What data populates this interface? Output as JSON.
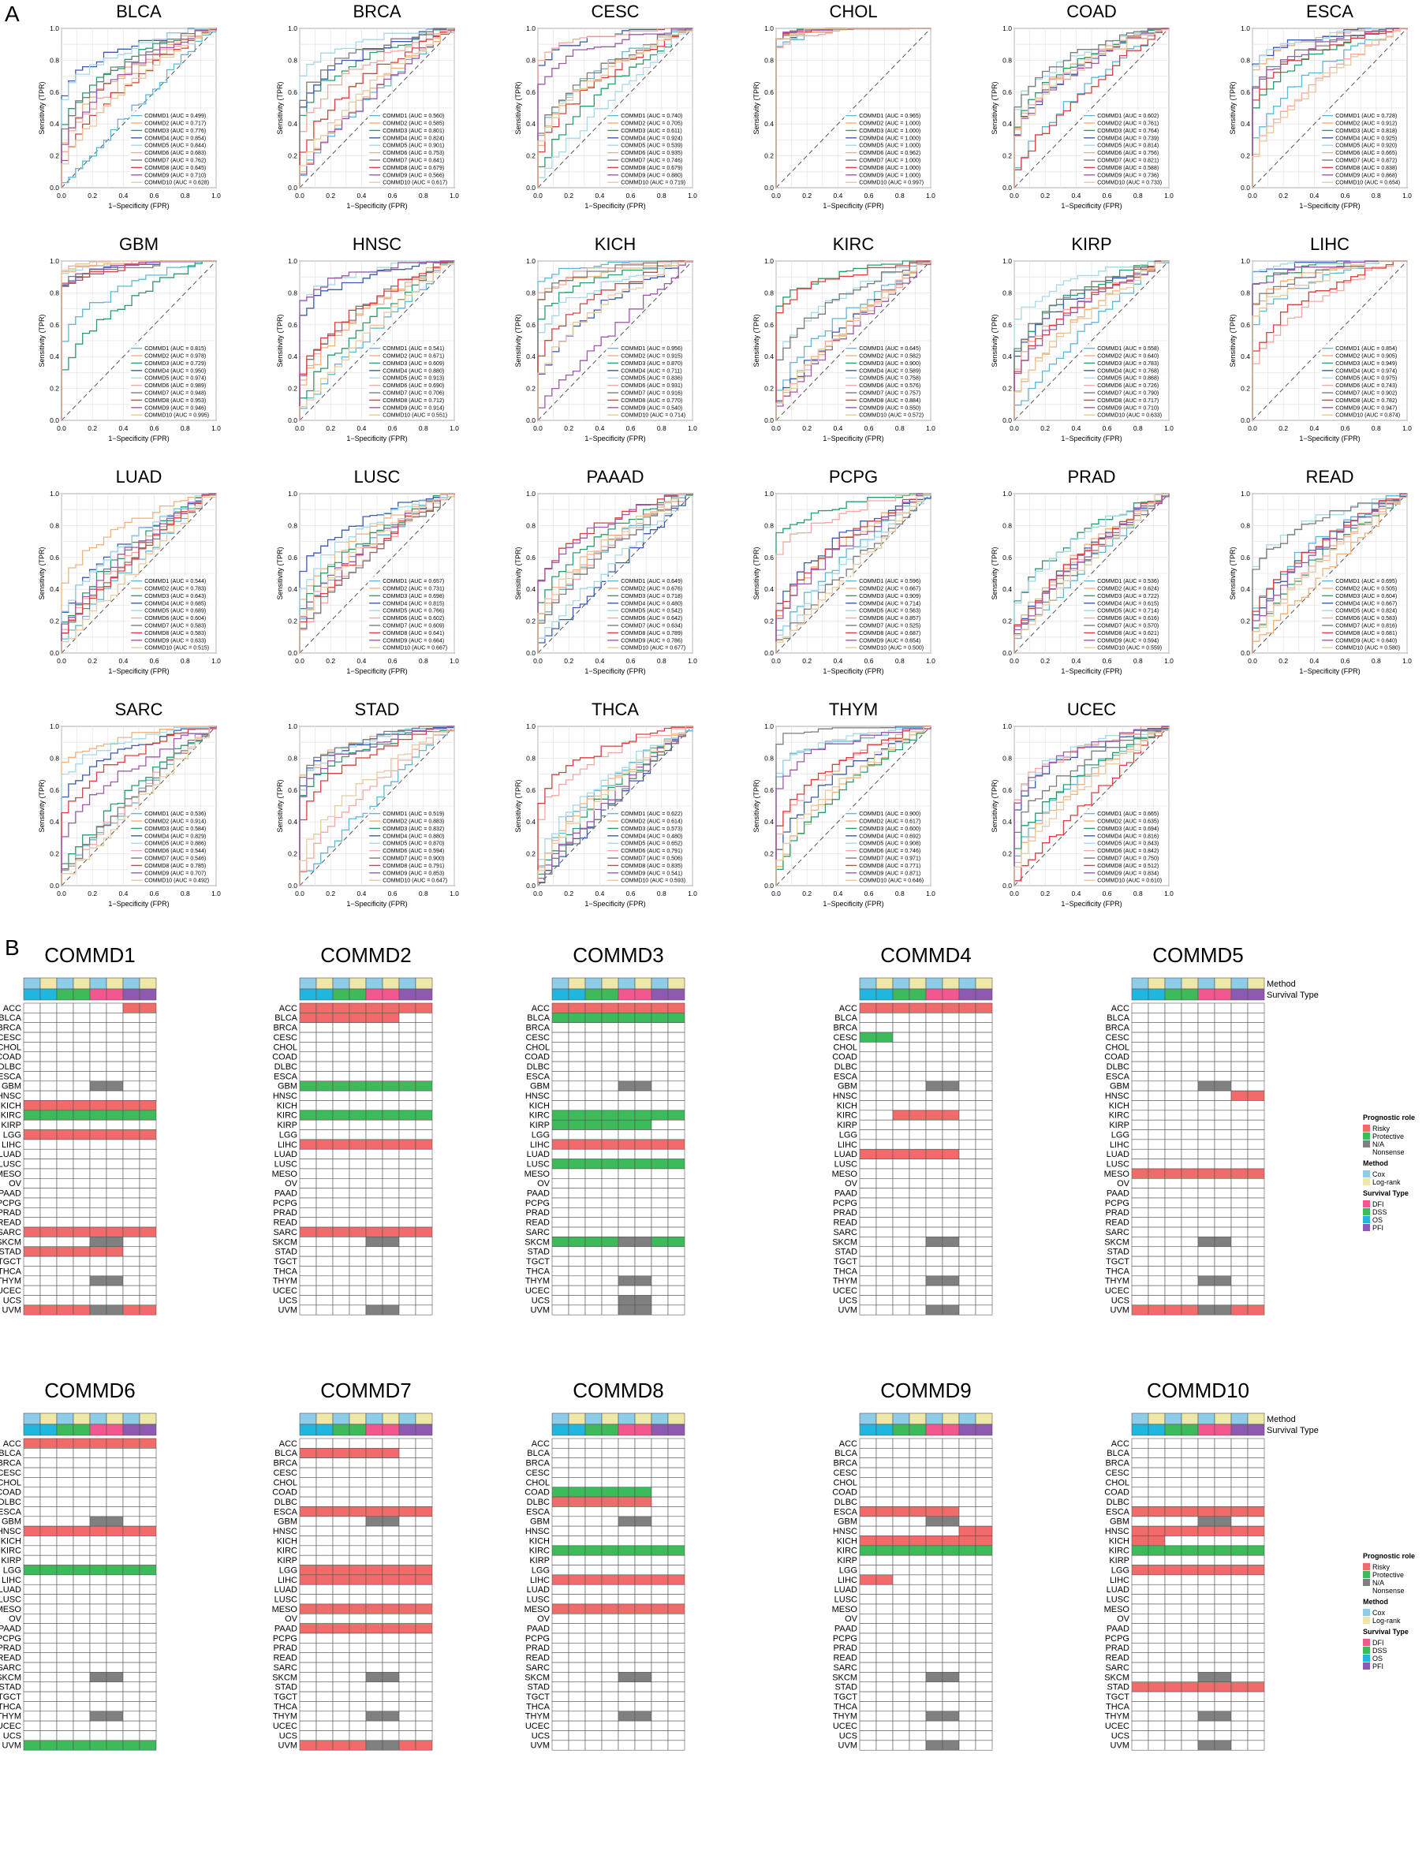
{
  "panel_a_label": "A",
  "panel_b_label": "B",
  "roc": {
    "xlabel": "1−Specificity (FPR)",
    "ylabel": "Sensitivity (TPR)",
    "ticks": [
      "0.0",
      "0.2",
      "0.4",
      "0.6",
      "0.8",
      "1.0"
    ],
    "series_prefix": [
      "COMMD1",
      "COMMD2",
      "COMMD3",
      "COMMD4",
      "COMMD5",
      "COMMD6",
      "COMMD7",
      "COMMD8",
      "COMMD9",
      "COMMD10"
    ],
    "colors": {
      "COMMD1": "#5fb8d6",
      "COMMD2": "#f0b27a",
      "COMMD3": "#2a9d6e",
      "COMMD4": "#3b5bab",
      "COMMD5": "#a7d8e8",
      "COMMD6": "#f2a9a0",
      "COMMD7": "#7c7c7c",
      "COMMD8": "#d94040",
      "COMMD9": "#9e5aa8",
      "COMMD10": "#e8c9a0"
    }
  },
  "chart_data": {
    "type": "line",
    "xlabel": "1−Specificity (FPR)",
    "ylabel": "Sensitivity (TPR)",
    "xlim": [
      0,
      1
    ],
    "ylim": [
      0,
      1
    ],
    "panels": [
      {
        "cancer": "BLCA",
        "auc": [
          0.499,
          0.717,
          0.776,
          0.854,
          0.844,
          0.683,
          0.762,
          0.645,
          0.71,
          0.628
        ]
      },
      {
        "cancer": "BRCA",
        "auc": [
          0.56,
          0.585,
          0.801,
          0.824,
          0.901,
          0.753,
          0.841,
          0.679,
          0.566,
          0.617
        ]
      },
      {
        "cancer": "CESC",
        "auc": [
          0.74,
          0.705,
          0.611,
          0.924,
          0.539,
          0.935,
          0.746,
          0.679,
          0.88,
          0.719
        ]
      },
      {
        "cancer": "CHOL",
        "auc": [
          0.965,
          1.0,
          1.0,
          1.0,
          1.0,
          0.962,
          1.0,
          1.0,
          1.0,
          0.997
        ]
      },
      {
        "cancer": "COAD",
        "auc": [
          0.602,
          0.761,
          0.764,
          0.739,
          0.814,
          0.756,
          0.821,
          0.588,
          0.736,
          0.733
        ]
      },
      {
        "cancer": "ESCA",
        "auc": [
          0.728,
          0.912,
          0.818,
          0.925,
          0.92,
          0.665,
          0.872,
          0.838,
          0.868,
          0.654
        ]
      },
      {
        "cancer": "GBM",
        "auc": [
          0.815,
          0.978,
          0.729,
          0.95,
          0.974,
          0.989,
          0.948,
          0.953,
          0.946,
          0.995
        ]
      },
      {
        "cancer": "HNSC",
        "auc": [
          0.541,
          0.671,
          0.609,
          0.88,
          0.913,
          0.69,
          0.706,
          0.712,
          0.914,
          0.551
        ]
      },
      {
        "cancer": "KICH",
        "auc": [
          0.956,
          0.915,
          0.87,
          0.711,
          0.836,
          0.931,
          0.916,
          0.77,
          0.54,
          0.714
        ]
      },
      {
        "cancer": "KIRC",
        "auc": [
          0.645,
          0.582,
          0.9,
          0.589,
          0.758,
          0.576,
          0.757,
          0.884,
          0.55,
          0.572
        ]
      },
      {
        "cancer": "KIRP",
        "auc": [
          0.558,
          0.64,
          0.783,
          0.768,
          0.868,
          0.726,
          0.79,
          0.717,
          0.71,
          0.633
        ]
      },
      {
        "cancer": "LIHC",
        "auc": [
          0.854,
          0.905,
          0.949,
          0.974,
          0.975,
          0.743,
          0.902,
          0.782,
          0.947,
          0.874
        ]
      },
      {
        "cancer": "LUAD",
        "auc": [
          0.544,
          0.783,
          0.643,
          0.685,
          0.689,
          0.604,
          0.583,
          0.583,
          0.633,
          0.515
        ]
      },
      {
        "cancer": "LUSC",
        "auc": [
          0.657,
          0.731,
          0.698,
          0.815,
          0.766,
          0.602,
          0.609,
          0.641,
          0.664,
          0.667
        ]
      },
      {
        "cancer": "PAAAD",
        "auc": [
          0.649,
          0.676,
          0.718,
          0.48,
          0.542,
          0.642,
          0.634,
          0.789,
          0.786,
          0.677
        ]
      },
      {
        "cancer": "PCPG",
        "auc": [
          0.596,
          0.667,
          0.909,
          0.714,
          0.563,
          0.857,
          0.525,
          0.687,
          0.654,
          0.5
        ]
      },
      {
        "cancer": "PRAD",
        "auc": [
          0.536,
          0.624,
          0.722,
          0.615,
          0.714,
          0.616,
          0.57,
          0.621,
          0.594,
          0.559
        ]
      },
      {
        "cancer": "READ",
        "auc": [
          0.695,
          0.505,
          0.604,
          0.667,
          0.824,
          0.583,
          0.816,
          0.681,
          0.64,
          0.58
        ]
      },
      {
        "cancer": "SARC",
        "auc": [
          0.536,
          0.914,
          0.584,
          0.829,
          0.886,
          0.544,
          0.546,
          0.785,
          0.707,
          0.492
        ]
      },
      {
        "cancer": "STAD",
        "auc": [
          0.519,
          0.883,
          0.832,
          0.88,
          0.87,
          0.594,
          0.9,
          0.791,
          0.853,
          0.647
        ]
      },
      {
        "cancer": "THCA",
        "auc": [
          0.622,
          0.614,
          0.573,
          0.48,
          0.652,
          0.791,
          0.506,
          0.835,
          0.541,
          0.593
        ]
      },
      {
        "cancer": "THYM",
        "auc": [
          0.9,
          0.617,
          0.6,
          0.692,
          0.908,
          0.746,
          0.971,
          0.771,
          0.871,
          0.646
        ]
      },
      {
        "cancer": "UCEC",
        "auc": [
          0.665,
          0.635,
          0.694,
          0.816,
          0.843,
          0.842,
          0.75,
          0.512,
          0.834,
          0.61
        ]
      }
    ]
  },
  "heatmap": {
    "top_labels": [
      "Method",
      "Survival Type"
    ],
    "cancers": [
      "ACC",
      "BLCA",
      "BRCA",
      "CESC",
      "CHOL",
      "COAD",
      "DLBC",
      "ESCA",
      "GBM",
      "HNSC",
      "KICH",
      "KIRC",
      "KIRP",
      "LGG",
      "LIHC",
      "LUAD",
      "LUSC",
      "MESO",
      "OV",
      "PAAD",
      "PCPG",
      "PRAD",
      "READ",
      "SARC",
      "SKCM",
      "STAD",
      "TGCT",
      "THCA",
      "THYM",
      "UCEC",
      "UCS",
      "UVM"
    ],
    "method_row": [
      "Cox",
      "Log-rank",
      "Cox",
      "Log-rank",
      "Cox",
      "Log-rank",
      "Cox",
      "Log-rank"
    ],
    "survival_row": [
      "OS",
      "OS",
      "DSS",
      "DSS",
      "DFI",
      "DFI",
      "PFI",
      "PFI"
    ],
    "state_colors": {
      "R": "#f26b6b",
      "P": "#3dbb5a",
      "N": "#808080",
      "W": "#ffffff"
    },
    "method_colors": {
      "Cox": "#8fcce8",
      "Log-rank": "#ede8a8"
    },
    "survival_colors": {
      "DFI": "#f2588f",
      "DSS": "#3dbb5a",
      "OS": "#21b6df",
      "PFI": "#8e59b0"
    },
    "legend_b": {
      "prognostic_title": "Prognostic role",
      "prognostic_items": [
        [
          "Risky",
          "R"
        ],
        [
          "Protective",
          "P"
        ],
        [
          "N/A",
          "N"
        ],
        [
          "Nonsense",
          "W"
        ]
      ],
      "method_title": "Method",
      "method_items": [
        "Cox",
        "Log-rank"
      ],
      "survival_title": "Survival Type",
      "survival_items": [
        "DFI",
        "DSS",
        "OS",
        "PFI"
      ]
    },
    "genes": [
      {
        "name": "COMMD1",
        "rows": {
          "ACC": "WWWWWWRR",
          "BLCA": "WWWWWWWW",
          "GBM": "WWWWNNWW",
          "KICH": "RRRRRRRR",
          "KIRC": "PPPPPPPP",
          "LGG": "RRRRRRRR",
          "SARC": "RRRRRRRR",
          "SKCM": "WWWWNNWW",
          "STAD": "RRRRRRWW",
          "THYM": "WWWWNNWW",
          "UVM": "RRRRNNRR"
        }
      },
      {
        "name": "COMMD2",
        "rows": {
          "ACC": "RRRRRRRR",
          "BLCA": "RRRRRRWW",
          "GBM": "PPPPPPPP",
          "KIRC": "PPPPPPPP",
          "LIHC": "RRRRRRRR",
          "SARC": "RRRRRRRR",
          "SKCM": "WWWWNNWW",
          "UVM": "WWWWNNWW"
        }
      },
      {
        "name": "COMMD3",
        "rows": {
          "ACC": "RRRRRRRR",
          "BLCA": "PPPPPPPP",
          "GBM": "WWWWNNWW",
          "KIRC": "PPPPPPPP",
          "KIRP": "PPPPPPWW",
          "LIHC": "RRRRRRRR",
          "LUSC": "PPPPPPPP",
          "SKCM": "PPPPNNPP",
          "THYM": "WWWWNNWW",
          "UCS": "WWWWNNWW",
          "UVM": "WWWWNNWW"
        }
      },
      {
        "name": "COMMD4",
        "rows": {
          "ACC": "RRRRRRRR",
          "CESC": "PPWWWWWW",
          "GBM": "WWWWNNWW",
          "KIRC": "WWRRRRWW",
          "LUAD": "RRRRRRWW",
          "SKCM": "WWWWNNWW",
          "THYM": "WWWWNNWW",
          "UVM": "WWWWNNWW"
        }
      },
      {
        "name": "COMMD5",
        "rows": {
          "GBM": "WWWWNNWW",
          "HNSC": "WWWWWWRR",
          "MESO": "RRRRRRRR",
          "SKCM": "WWWWNNWW",
          "THYM": "WWWWNNWW",
          "UVM": "RRRRNNRR"
        }
      },
      {
        "name": "COMMD6",
        "rows": {
          "ACC": "RRRRRRRR",
          "GBM": "WWWWNNWW",
          "HNSC": "RRRRRRRR",
          "LGG": "PPPPPPPP",
          "SKCM": "WWWWNNWW",
          "THYM": "WWWWNNWW",
          "UVM": "PPPPPPPP"
        }
      },
      {
        "name": "COMMD7",
        "rows": {
          "BLCA": "RRRRRRWW",
          "ESCA": "RRRRRRRR",
          "GBM": "WWWWNNWW",
          "LGG": "RRRRRRRR",
          "LIHC": "RRRRRRRR",
          "MESO": "RRRRRRRR",
          "PAAD": "RRRRRRRR",
          "SKCM": "WWWWNNWW",
          "THYM": "WWWWNNWW",
          "UVM": "RRRRNNRR"
        }
      },
      {
        "name": "COMMD8",
        "rows": {
          "COAD": "PPPPPPWW",
          "DLBC": "RRRRRRWW",
          "GBM": "WWWWNNWW",
          "KIRC": "PPPPPPPP",
          "LIHC": "RRRRRRRR",
          "MESO": "RRRRRRRR",
          "SKCM": "WWWWNNWW",
          "THYM": "WWWWNNWW"
        }
      },
      {
        "name": "COMMD9",
        "rows": {
          "ESCA": "RRRRRRWW",
          "GBM": "WWWWNNWW",
          "HNSC": "WWWWWWRR",
          "KICH": "RRRRRRRR",
          "KIRC": "PPPPPPPP",
          "LIHC": "RRWWWWWW",
          "SKCM": "WWWWNNWW",
          "THYM": "WWWWNNWW",
          "UVM": "WWWWNNWW"
        }
      },
      {
        "name": "COMMD10",
        "rows": {
          "ESCA": "RRRRRRRR",
          "GBM": "WWWWNNWW",
          "HNSC": "RRRRRRRR",
          "KICH": "RRWWWWWW",
          "KIRC": "PPPPPPPP",
          "LGG": "RRRRRRRR",
          "SKCM": "WWWWNNWW",
          "STAD": "RRRRRRRR",
          "THYM": "WWWWNNWW",
          "UVM": "WWWWNNWW"
        }
      }
    ]
  }
}
